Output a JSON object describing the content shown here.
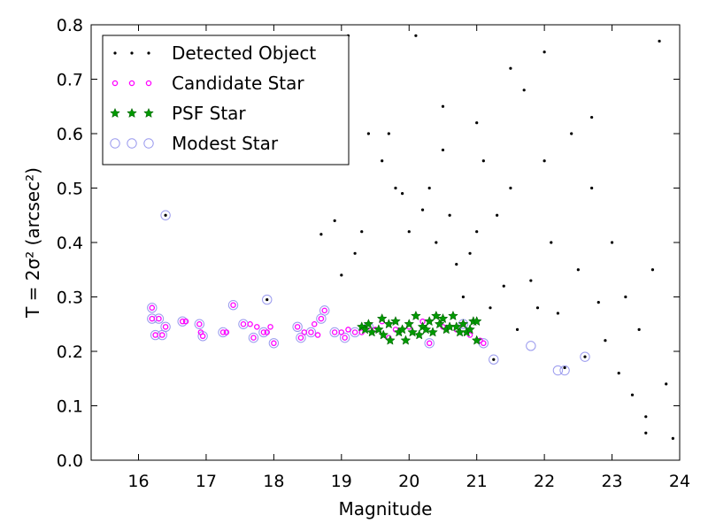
{
  "chart_data": {
    "type": "scatter",
    "xlabel": "Magnitude",
    "ylabel": "T = 2σ² (arcsec²)",
    "xlim": [
      15.3,
      24.0
    ],
    "ylim": [
      0.0,
      0.8
    ],
    "xticks": [
      "16",
      "17",
      "18",
      "19",
      "20",
      "21",
      "22",
      "23",
      "24"
    ],
    "yticks": [
      "0.0",
      "0.1",
      "0.2",
      "0.3",
      "0.4",
      "0.5",
      "0.6",
      "0.7",
      "0.8"
    ],
    "grid": false,
    "legend_position": "upper-left",
    "series": [
      {
        "name": "Detected Object",
        "marker": "dot",
        "color": "#000000",
        "points": [
          [
            16.4,
            0.45
          ],
          [
            17.9,
            0.295
          ],
          [
            18.7,
            0.415
          ],
          [
            18.9,
            0.44
          ],
          [
            19.0,
            0.34
          ],
          [
            19.1,
            0.78
          ],
          [
            19.2,
            0.38
          ],
          [
            19.3,
            0.42
          ],
          [
            19.4,
            0.6
          ],
          [
            19.6,
            0.55
          ],
          [
            19.7,
            0.6
          ],
          [
            19.8,
            0.5
          ],
          [
            19.9,
            0.49
          ],
          [
            20.0,
            0.42
          ],
          [
            20.1,
            0.78
          ],
          [
            20.2,
            0.46
          ],
          [
            20.3,
            0.5
          ],
          [
            20.4,
            0.4
          ],
          [
            20.5,
            0.57
          ],
          [
            20.6,
            0.45
          ],
          [
            20.7,
            0.36
          ],
          [
            20.8,
            0.3
          ],
          [
            20.9,
            0.38
          ],
          [
            21.0,
            0.42
          ],
          [
            21.1,
            0.55
          ],
          [
            21.2,
            0.28
          ],
          [
            21.25,
            0.185
          ],
          [
            21.3,
            0.45
          ],
          [
            21.4,
            0.32
          ],
          [
            21.5,
            0.5
          ],
          [
            21.6,
            0.24
          ],
          [
            21.7,
            0.68
          ],
          [
            21.8,
            0.33
          ],
          [
            21.9,
            0.28
          ],
          [
            22.0,
            0.55
          ],
          [
            22.1,
            0.4
          ],
          [
            22.2,
            0.27
          ],
          [
            22.3,
            0.17
          ],
          [
            22.4,
            0.6
          ],
          [
            22.5,
            0.35
          ],
          [
            22.6,
            0.19
          ],
          [
            22.7,
            0.5
          ],
          [
            22.8,
            0.29
          ],
          [
            22.9,
            0.22
          ],
          [
            23.0,
            0.4
          ],
          [
            23.1,
            0.16
          ],
          [
            23.2,
            0.3
          ],
          [
            23.3,
            0.12
          ],
          [
            23.4,
            0.24
          ],
          [
            23.5,
            0.08
          ],
          [
            23.6,
            0.35
          ],
          [
            23.7,
            0.77
          ],
          [
            23.8,
            0.14
          ],
          [
            23.9,
            0.04
          ],
          [
            23.5,
            0.05
          ],
          [
            21.0,
            0.62
          ],
          [
            22.0,
            0.75
          ],
          [
            20.5,
            0.65
          ],
          [
            22.7,
            0.63
          ],
          [
            21.5,
            0.72
          ]
        ]
      },
      {
        "name": "Candidate Star",
        "marker": "small-circle",
        "color": "#ff00ff",
        "points": [
          [
            16.2,
            0.28
          ],
          [
            16.2,
            0.26
          ],
          [
            16.25,
            0.23
          ],
          [
            16.3,
            0.26
          ],
          [
            16.35,
            0.23
          ],
          [
            16.4,
            0.245
          ],
          [
            16.65,
            0.255
          ],
          [
            16.7,
            0.255
          ],
          [
            16.9,
            0.25
          ],
          [
            16.92,
            0.235
          ],
          [
            16.95,
            0.228
          ],
          [
            17.25,
            0.235
          ],
          [
            17.3,
            0.235
          ],
          [
            17.4,
            0.285
          ],
          [
            17.55,
            0.25
          ],
          [
            17.65,
            0.25
          ],
          [
            17.7,
            0.225
          ],
          [
            17.75,
            0.245
          ],
          [
            17.85,
            0.235
          ],
          [
            17.9,
            0.235
          ],
          [
            17.95,
            0.245
          ],
          [
            18.0,
            0.215
          ],
          [
            18.35,
            0.245
          ],
          [
            18.4,
            0.225
          ],
          [
            18.45,
            0.235
          ],
          [
            18.55,
            0.235
          ],
          [
            18.6,
            0.25
          ],
          [
            18.65,
            0.23
          ],
          [
            18.7,
            0.26
          ],
          [
            18.75,
            0.275
          ],
          [
            18.9,
            0.235
          ],
          [
            19.0,
            0.235
          ],
          [
            19.05,
            0.225
          ],
          [
            19.1,
            0.24
          ],
          [
            19.2,
            0.235
          ],
          [
            19.3,
            0.235
          ],
          [
            19.4,
            0.245
          ],
          [
            19.5,
            0.24
          ],
          [
            19.6,
            0.255
          ],
          [
            19.7,
            0.225
          ],
          [
            19.8,
            0.24
          ],
          [
            20.0,
            0.245
          ],
          [
            20.2,
            0.255
          ],
          [
            20.3,
            0.215
          ],
          [
            20.5,
            0.245
          ],
          [
            20.7,
            0.24
          ],
          [
            20.8,
            0.25
          ],
          [
            20.9,
            0.23
          ],
          [
            21.05,
            0.22
          ],
          [
            21.1,
            0.215
          ]
        ]
      },
      {
        "name": "PSF Star",
        "marker": "star",
        "color": "#009900",
        "points": [
          [
            19.3,
            0.245
          ],
          [
            19.35,
            0.24
          ],
          [
            19.4,
            0.25
          ],
          [
            19.45,
            0.235
          ],
          [
            19.55,
            0.24
          ],
          [
            19.6,
            0.26
          ],
          [
            19.62,
            0.23
          ],
          [
            19.7,
            0.25
          ],
          [
            19.72,
            0.22
          ],
          [
            19.8,
            0.255
          ],
          [
            19.85,
            0.235
          ],
          [
            19.9,
            0.24
          ],
          [
            19.95,
            0.22
          ],
          [
            20.0,
            0.25
          ],
          [
            20.05,
            0.235
          ],
          [
            20.1,
            0.265
          ],
          [
            20.15,
            0.23
          ],
          [
            20.2,
            0.245
          ],
          [
            20.25,
            0.24
          ],
          [
            20.3,
            0.255
          ],
          [
            20.35,
            0.235
          ],
          [
            20.4,
            0.265
          ],
          [
            20.45,
            0.25
          ],
          [
            20.5,
            0.26
          ],
          [
            20.55,
            0.24
          ],
          [
            20.6,
            0.245
          ],
          [
            20.65,
            0.265
          ],
          [
            20.7,
            0.245
          ],
          [
            20.75,
            0.235
          ],
          [
            20.8,
            0.25
          ],
          [
            20.85,
            0.235
          ],
          [
            20.9,
            0.24
          ],
          [
            20.95,
            0.255
          ],
          [
            21.0,
            0.255
          ],
          [
            21.0,
            0.22
          ]
        ]
      },
      {
        "name": "Modest Star",
        "marker": "open-circle",
        "color": "#9999ee",
        "points": [
          [
            16.2,
            0.28
          ],
          [
            16.2,
            0.26
          ],
          [
            16.25,
            0.23
          ],
          [
            16.3,
            0.26
          ],
          [
            16.35,
            0.23
          ],
          [
            16.4,
            0.245
          ],
          [
            16.4,
            0.45
          ],
          [
            16.65,
            0.255
          ],
          [
            16.9,
            0.25
          ],
          [
            16.95,
            0.228
          ],
          [
            17.25,
            0.235
          ],
          [
            17.4,
            0.285
          ],
          [
            17.55,
            0.25
          ],
          [
            17.7,
            0.225
          ],
          [
            17.85,
            0.235
          ],
          [
            17.9,
            0.295
          ],
          [
            18.0,
            0.215
          ],
          [
            18.35,
            0.245
          ],
          [
            18.4,
            0.225
          ],
          [
            18.55,
            0.235
          ],
          [
            18.7,
            0.26
          ],
          [
            18.75,
            0.275
          ],
          [
            18.9,
            0.235
          ],
          [
            19.05,
            0.225
          ],
          [
            19.2,
            0.235
          ],
          [
            19.4,
            0.245
          ],
          [
            20.3,
            0.215
          ],
          [
            20.8,
            0.25
          ],
          [
            21.1,
            0.215
          ],
          [
            21.25,
            0.185
          ],
          [
            21.8,
            0.21
          ],
          [
            22.2,
            0.165
          ],
          [
            22.3,
            0.165
          ],
          [
            22.6,
            0.19
          ]
        ]
      }
    ]
  }
}
